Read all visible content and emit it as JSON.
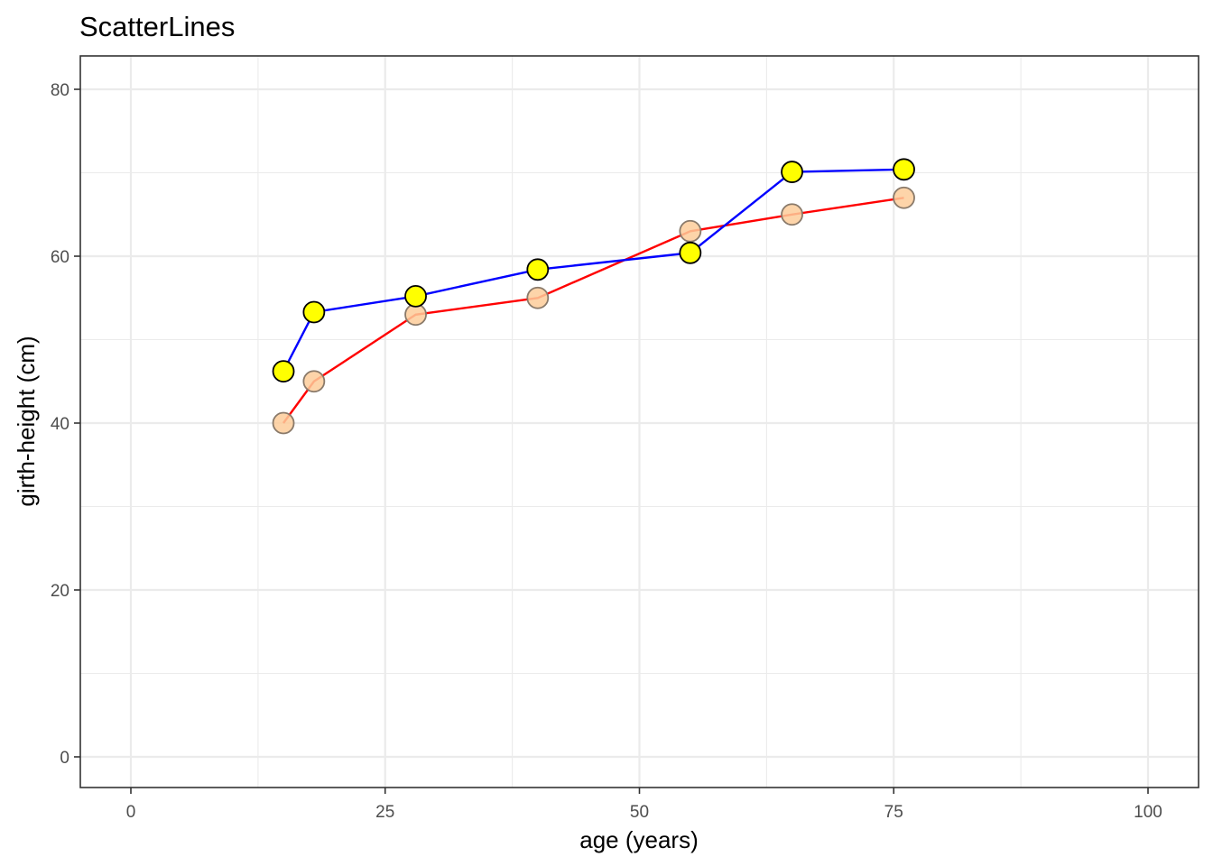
{
  "chart_data": {
    "type": "scatter",
    "title": "ScatterLines",
    "xlabel": "age (years)",
    "ylabel": "girth-height (cm)",
    "xlim": [
      0,
      100
    ],
    "ylim": [
      0,
      80
    ],
    "x_ticks": [
      0,
      25,
      50,
      75,
      100
    ],
    "y_ticks": [
      0,
      20,
      40,
      60,
      80
    ],
    "x_tick_labels": [
      "0",
      "25",
      "50",
      "75",
      "100"
    ],
    "y_tick_labels": [
      "0",
      "20",
      "40",
      "60",
      "80"
    ],
    "grid": true,
    "legend": "none",
    "series": [
      {
        "key": "circumference",
        "x": [
          15,
          18,
          28,
          40,
          55,
          65,
          76
        ],
        "y": [
          40,
          45,
          53,
          55,
          63,
          65,
          67
        ],
        "line_color": "#ff0000",
        "point_fill": "#fdcc9a",
        "point_stroke": "#8a7a6a",
        "point_opacity": 0.85
      },
      {
        "key": "height",
        "x": [
          15,
          18,
          28,
          40,
          55,
          65,
          76
        ],
        "y": [
          46.2,
          53.3,
          55.2,
          58.4,
          60.4,
          70.1,
          70.4
        ],
        "line_color": "#0000ff",
        "point_fill": "#ffff00",
        "point_stroke": "#000000",
        "point_opacity": 1
      }
    ]
  }
}
